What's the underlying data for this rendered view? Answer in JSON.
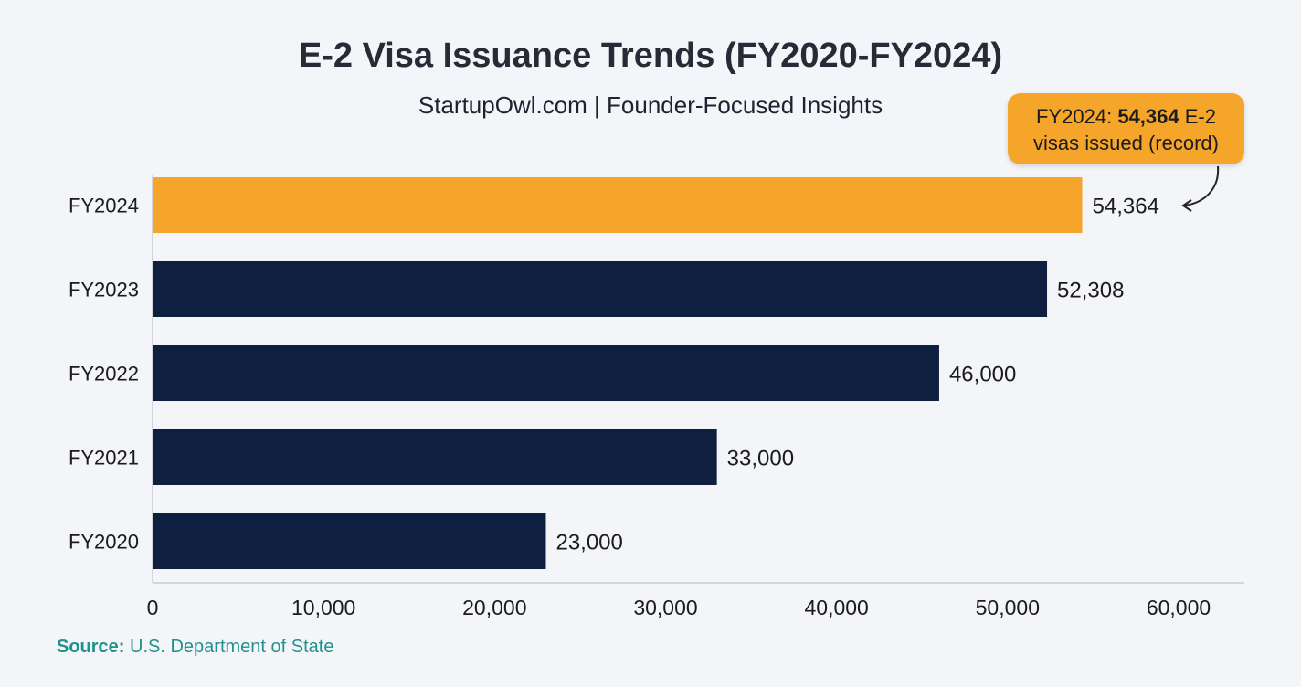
{
  "title": "E-2 Visa Issuance Trends (FY2020-FY2024)",
  "subtitle": "StartupOwl.com | Founder-Focused Insights",
  "callout": {
    "prefix": "FY2024: ",
    "value": "54,364",
    "suffix": " E-2",
    "line2": "visas issued (record)"
  },
  "source": {
    "label": "Source:",
    "text": " U.S. Department of State"
  },
  "colors": {
    "highlight": "#f5a52a",
    "bar": "#0f1f3f",
    "background": "#f3f5f9",
    "source": "#22918a"
  },
  "chart_data": {
    "type": "bar",
    "orientation": "horizontal",
    "categories": [
      "FY2024",
      "FY2023",
      "FY2022",
      "FY2021",
      "FY2020"
    ],
    "values": [
      54364,
      52308,
      46000,
      33000,
      23000
    ],
    "value_labels": [
      "54,364",
      "52,308",
      "46,000",
      "33,000",
      "23,000"
    ],
    "highlight": "FY2024",
    "xlim": [
      0,
      60000
    ],
    "x_ticks": [
      0,
      10000,
      20000,
      30000,
      40000,
      50000,
      60000
    ],
    "x_tick_labels": [
      "0",
      "10,000",
      "20,000",
      "30,000",
      "40,000",
      "50,000",
      "60,000"
    ],
    "grid": false
  }
}
